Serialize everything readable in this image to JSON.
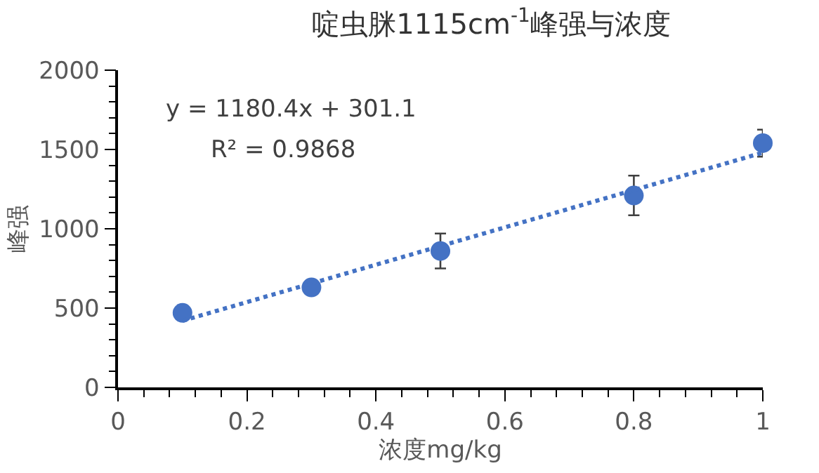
{
  "chart_data": {
    "type": "scatter",
    "title": "啶虫脒1115cm$^{-1}$峰强与浓度",
    "xlabel": "浓度mg/kg",
    "ylabel": "峰强",
    "x": [
      0.1,
      0.3,
      0.5,
      0.8,
      1
    ],
    "series": [
      {
        "color": "#4472c4",
        "values": [
          470,
          630,
          860,
          1210,
          1540
        ],
        "errors": [
          null,
          null,
          110,
          125,
          85
        ],
        "marker": "circle"
      },
      {
        "type": "line",
        "color": "#4472c4",
        "x": [
          0.1,
          1
        ],
        "values": [
          420,
          1480
        ],
        "line_style": "dotted",
        "marker": "none"
      }
    ],
    "annotations": [
      "y = 1180.4x + 301.1",
      "R² = 0.9868"
    ],
    "xlim": [
      0,
      1
    ],
    "xticks": [
      0,
      0.2,
      0.4,
      0.6,
      0.8,
      1
    ],
    "ylim": [
      0,
      2000
    ],
    "yticks": [
      0,
      500,
      1000,
      1500,
      2000
    ]
  }
}
